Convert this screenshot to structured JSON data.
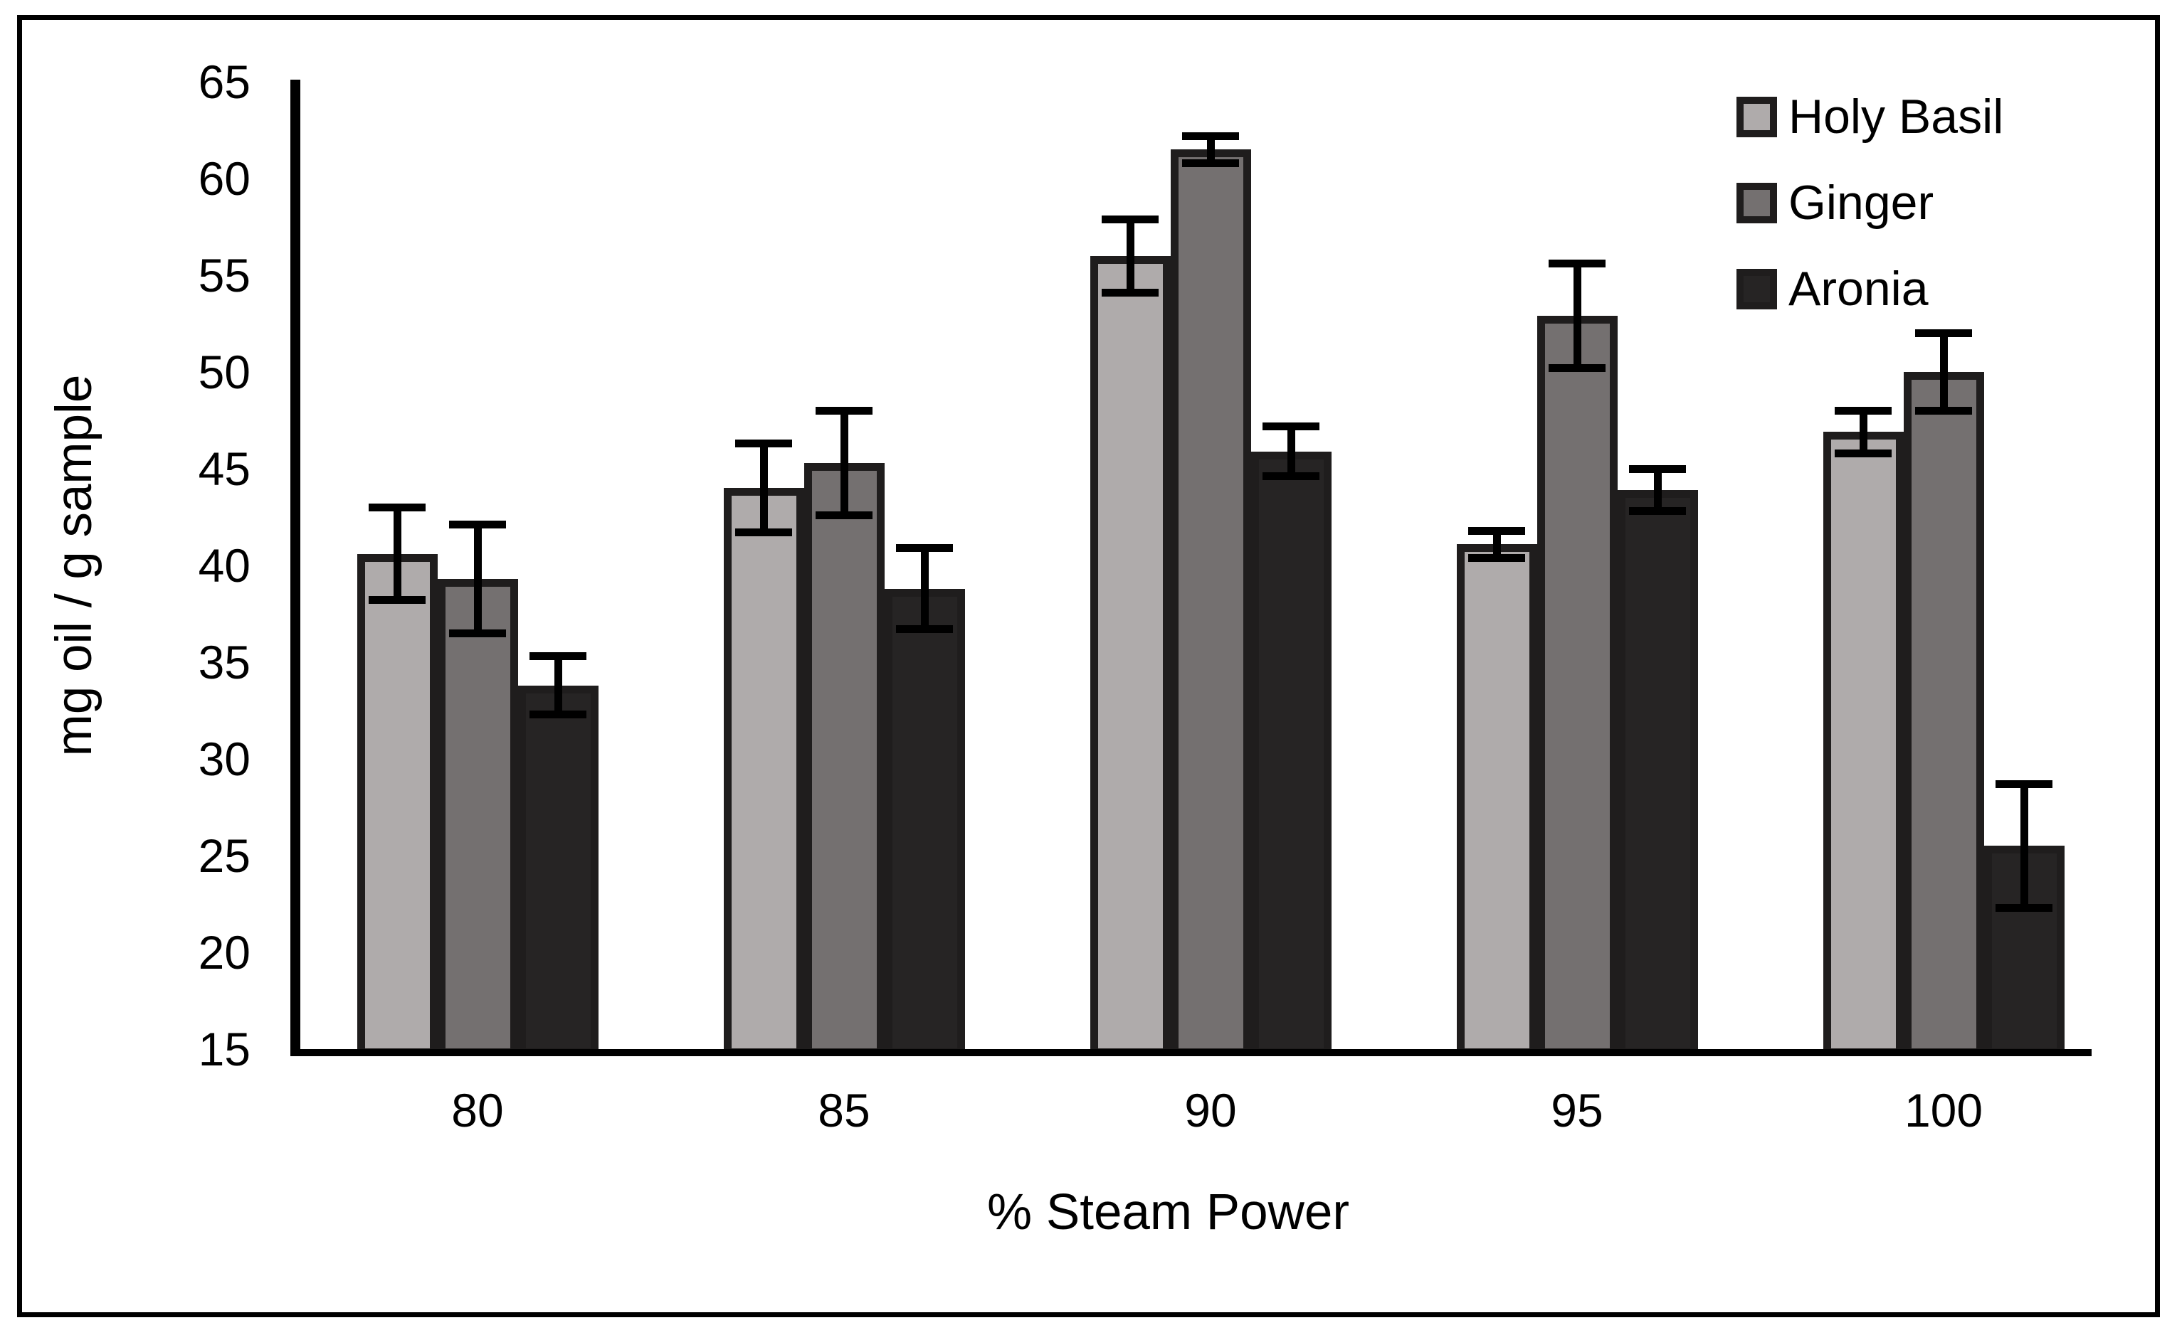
{
  "chart_data": {
    "type": "bar",
    "title": "",
    "xlabel": "% Steam Power",
    "ylabel": "mg oil / g sample",
    "categories": [
      "80",
      "85",
      "90",
      "95",
      "100"
    ],
    "series": [
      {
        "name": "Holy Basil",
        "color": "#afabab",
        "values": [
          40.6,
          44.0,
          56.0,
          41.1,
          46.9
        ],
        "errors": [
          2.4,
          2.3,
          1.9,
          0.7,
          1.1
        ]
      },
      {
        "name": "Ginger",
        "color": "#747070",
        "values": [
          39.3,
          45.3,
          61.5,
          52.9,
          50.0
        ],
        "errors": [
          2.8,
          2.7,
          0.7,
          2.7,
          2.0
        ]
      },
      {
        "name": "Aronia",
        "color": "#262424",
        "values": [
          33.8,
          38.8,
          45.9,
          43.9,
          25.5
        ],
        "errors": [
          1.5,
          2.1,
          1.3,
          1.1,
          3.2
        ]
      }
    ],
    "ylim": [
      15,
      65
    ],
    "ytick_step": 5,
    "yticks": [
      "15",
      "20",
      "25",
      "30",
      "35",
      "40",
      "45",
      "50",
      "55",
      "60",
      "65"
    ],
    "grid": false,
    "error_bars": true,
    "legend_position": "top-right",
    "bar_border_color": "#1f1d1d",
    "axis_color": "#000000",
    "background_color": "#ffffff"
  }
}
